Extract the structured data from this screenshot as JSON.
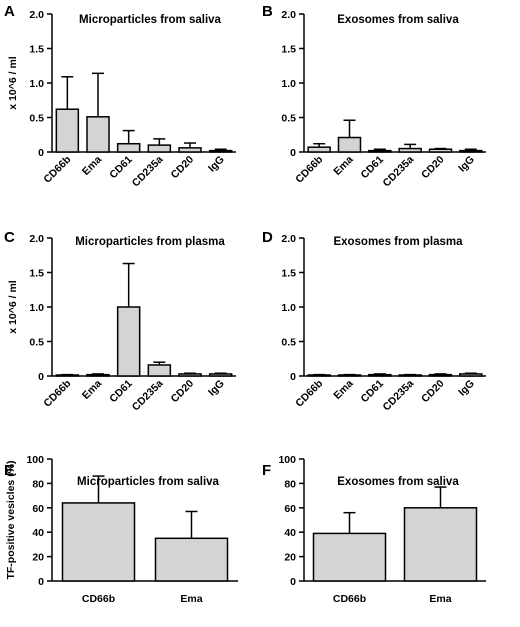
{
  "chart_data": [
    {
      "panel": "A",
      "type": "bar",
      "title": "Microparticles from saliva",
      "ylabel": "x 10^6 / ml",
      "ylim": [
        0,
        2.0
      ],
      "yticks": [
        "0",
        "0.5",
        "1.0",
        "1.5",
        "2.0"
      ],
      "categories": [
        "CD66b",
        "Ema",
        "CD61",
        "CD235a",
        "CD20",
        "IgG"
      ],
      "values": [
        0.62,
        0.51,
        0.12,
        0.1,
        0.06,
        0.02
      ],
      "errors": [
        0.47,
        0.63,
        0.19,
        0.09,
        0.07,
        0.02
      ]
    },
    {
      "panel": "B",
      "type": "bar",
      "title": "Exosomes from saliva",
      "ylabel": "",
      "ylim": [
        0,
        2.0
      ],
      "yticks": [
        "0",
        "0.5",
        "1.0",
        "1.5",
        "2.0"
      ],
      "categories": [
        "CD66b",
        "Ema",
        "CD61",
        "CD235a",
        "CD20",
        "IgG"
      ],
      "values": [
        0.07,
        0.21,
        0.02,
        0.05,
        0.04,
        0.02
      ],
      "errors": [
        0.05,
        0.25,
        0.02,
        0.06,
        0.01,
        0.02
      ]
    },
    {
      "panel": "C",
      "type": "bar",
      "title": "Microparticles from plasma",
      "ylabel": "x 10^6 / ml",
      "ylim": [
        0,
        2.0
      ],
      "yticks": [
        "0",
        "0.5",
        "1.0",
        "1.5",
        "2.0"
      ],
      "categories": [
        "CD66b",
        "Ema",
        "CD61",
        "CD235a",
        "CD20",
        "IgG"
      ],
      "values": [
        0.01,
        0.02,
        1.0,
        0.16,
        0.03,
        0.03
      ],
      "errors": [
        0.01,
        0.01,
        0.63,
        0.04,
        0.01,
        0.01
      ]
    },
    {
      "panel": "D",
      "type": "bar",
      "title": "Exosomes from plasma",
      "ylabel": "",
      "ylim": [
        0,
        2.0
      ],
      "yticks": [
        "0",
        "0.5",
        "1.0",
        "1.5",
        "2.0"
      ],
      "categories": [
        "CD66b",
        "Ema",
        "CD61",
        "CD235a",
        "CD20",
        "IgG"
      ],
      "values": [
        0.01,
        0.01,
        0.02,
        0.01,
        0.02,
        0.03
      ],
      "errors": [
        0.01,
        0.01,
        0.01,
        0.01,
        0.01,
        0.01
      ]
    },
    {
      "panel": "E",
      "type": "bar",
      "title": "Microparticles from saliva",
      "ylabel": "TF-positive vesicles (%)",
      "ylim": [
        0,
        100
      ],
      "yticks": [
        "0",
        "20",
        "40",
        "60",
        "80",
        "100"
      ],
      "categories": [
        "CD66b",
        "Ema"
      ],
      "values": [
        64,
        35
      ],
      "errors": [
        22,
        22
      ]
    },
    {
      "panel": "F",
      "type": "bar",
      "title": "Exosomes from saliva",
      "ylabel": "",
      "ylim": [
        0,
        100
      ],
      "yticks": [
        "0",
        "20",
        "40",
        "60",
        "80",
        "100"
      ],
      "categories": [
        "CD66b",
        "Ema"
      ],
      "values": [
        39,
        60
      ],
      "errors": [
        17,
        17
      ]
    }
  ],
  "style": {
    "bar_fill": "#d4d4d4",
    "bar_stroke": "#000000",
    "axis_color": "#000000"
  }
}
